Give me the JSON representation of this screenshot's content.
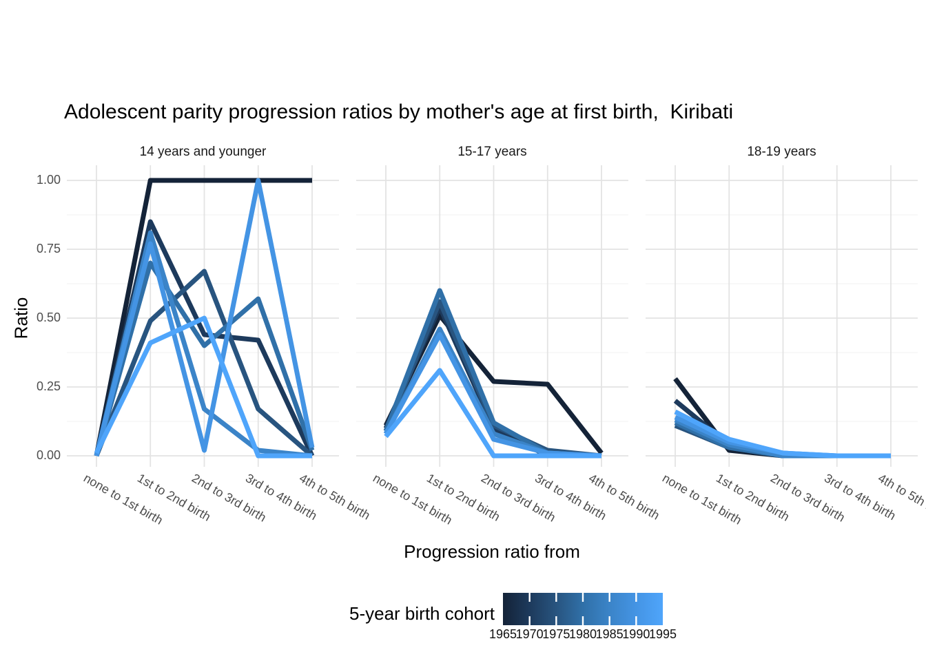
{
  "chart_data": {
    "type": "line",
    "title": "Adolescent parity progression ratios by mother's age at first birth,  Kiribati",
    "xlabel": "Progression ratio from",
    "ylabel": "Ratio",
    "categories": [
      "none to 1st birth",
      "1st to 2nd birth",
      "2nd to 3rd birth",
      "3rd to 4th birth",
      "4th to 5th birth"
    ],
    "y_ticks": [
      {
        "label": "1.00",
        "value": 1.0
      },
      {
        "label": "0.75",
        "value": 0.75
      },
      {
        "label": "0.50",
        "value": 0.5
      },
      {
        "label": "0.25",
        "value": 0.25
      },
      {
        "label": "0.00",
        "value": 0.0
      }
    ],
    "ylim": [
      0,
      1
    ],
    "grid": {
      "major": true,
      "minor": true,
      "major_color": "#e3e3e3",
      "minor_color": "#f0f0f0"
    },
    "axis_text_color": "#4d4d4d",
    "line_width": 7,
    "cohorts": [
      {
        "name": "1965",
        "color": "#142338"
      },
      {
        "name": "1970",
        "color": "#1d3a5c"
      },
      {
        "name": "1975",
        "color": "#28547f"
      },
      {
        "name": "1980",
        "color": "#3070a8"
      },
      {
        "name": "1985",
        "color": "#3b84c8"
      },
      {
        "name": "1990",
        "color": "#4494e4"
      },
      {
        "name": "1995",
        "color": "#4fa5fb"
      }
    ],
    "facets": [
      {
        "label": "14 years and younger",
        "series": [
          {
            "cohort": "1965",
            "values": [
              0.0,
              1.0,
              1.0,
              1.0,
              1.0
            ]
          },
          {
            "cohort": "1970",
            "values": [
              0.0,
              0.85,
              0.44,
              0.42,
              0.0
            ]
          },
          {
            "cohort": "1975",
            "values": [
              0.0,
              0.49,
              0.67,
              0.17,
              0.0
            ]
          },
          {
            "cohort": "1980",
            "values": [
              0.0,
              0.7,
              0.4,
              0.57,
              0.02
            ]
          },
          {
            "cohort": "1985",
            "values": [
              0.0,
              0.81,
              0.17,
              0.02,
              0.0
            ]
          },
          {
            "cohort": "1990",
            "values": [
              0.0,
              0.77,
              0.02,
              1.0,
              0.03
            ]
          },
          {
            "cohort": "1995",
            "values": [
              0.01,
              0.41,
              0.5,
              0.0,
              0.0
            ]
          }
        ]
      },
      {
        "label": "15-17 years",
        "series": [
          {
            "cohort": "1965",
            "values": [
              0.11,
              0.51,
              0.27,
              0.26,
              0.01
            ]
          },
          {
            "cohort": "1970",
            "values": [
              0.1,
              0.54,
              0.1,
              0.0,
              0.0
            ]
          },
          {
            "cohort": "1975",
            "values": [
              0.09,
              0.56,
              0.11,
              0.02,
              0.0
            ]
          },
          {
            "cohort": "1980",
            "values": [
              0.09,
              0.6,
              0.12,
              0.01,
              0.0
            ]
          },
          {
            "cohort": "1985",
            "values": [
              0.08,
              0.46,
              0.08,
              0.01,
              0.0
            ]
          },
          {
            "cohort": "1990",
            "values": [
              0.08,
              0.44,
              0.06,
              0.01,
              0.0
            ]
          },
          {
            "cohort": "1995",
            "values": [
              0.07,
              0.31,
              0.0,
              0.0,
              0.0
            ]
          }
        ]
      },
      {
        "label": "18-19 years",
        "series": [
          {
            "cohort": "1965",
            "values": [
              0.28,
              0.02,
              0.0,
              0.0,
              0.0
            ]
          },
          {
            "cohort": "1970",
            "values": [
              0.2,
              0.04,
              0.0,
              0.0,
              0.0
            ]
          },
          {
            "cohort": "1975",
            "values": [
              0.11,
              0.03,
              0.0,
              0.0,
              0.0
            ]
          },
          {
            "cohort": "1980",
            "values": [
              0.12,
              0.03,
              0.0,
              0.0,
              0.0
            ]
          },
          {
            "cohort": "1985",
            "values": [
              0.13,
              0.04,
              0.0,
              0.0,
              0.0
            ]
          },
          {
            "cohort": "1990",
            "values": [
              0.14,
              0.05,
              0.01,
              0.0,
              0.0
            ]
          },
          {
            "cohort": "1995",
            "values": [
              0.16,
              0.06,
              0.01,
              0.0,
              0.0
            ]
          }
        ]
      }
    ],
    "legend": {
      "title": "5-year birth cohort",
      "position": "bottom",
      "labels": [
        "1965",
        "1970",
        "1975",
        "1980",
        "1985",
        "1990",
        "1995"
      ],
      "gradient_from": "#142338",
      "gradient_to": "#4fa5fb"
    }
  }
}
